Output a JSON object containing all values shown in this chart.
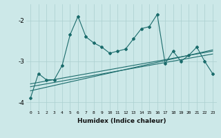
{
  "xlabel": "Humidex (Indice chaleur)",
  "bg_color": "#cce8e8",
  "line_color": "#1a6b6b",
  "grid_color": "#aacfcf",
  "x_values": [
    0,
    1,
    2,
    3,
    4,
    5,
    6,
    7,
    8,
    9,
    10,
    11,
    12,
    13,
    14,
    15,
    16,
    17,
    18,
    19,
    20,
    21,
    22,
    23
  ],
  "series1": [
    -3.9,
    -3.3,
    -3.45,
    -3.45,
    -3.1,
    -2.35,
    -1.9,
    -2.4,
    -2.55,
    -2.65,
    -2.8,
    -2.75,
    -2.7,
    -2.45,
    -2.2,
    -2.15,
    -1.85,
    -3.05,
    -2.75,
    -3.0,
    -2.85,
    -2.65,
    -3.0,
    -3.3
  ],
  "series2_x": [
    0,
    23
  ],
  "series2_y": [
    -3.55,
    -2.75
  ],
  "series3_x": [
    0,
    23
  ],
  "series3_y": [
    -3.62,
    -2.82
  ],
  "series4_x": [
    0,
    23
  ],
  "series4_y": [
    -3.72,
    -2.72
  ],
  "ylim": [
    -4.2,
    -1.6
  ],
  "yticks": [
    -4,
    -3,
    -2
  ],
  "xlim": [
    -0.5,
    23.5
  ]
}
